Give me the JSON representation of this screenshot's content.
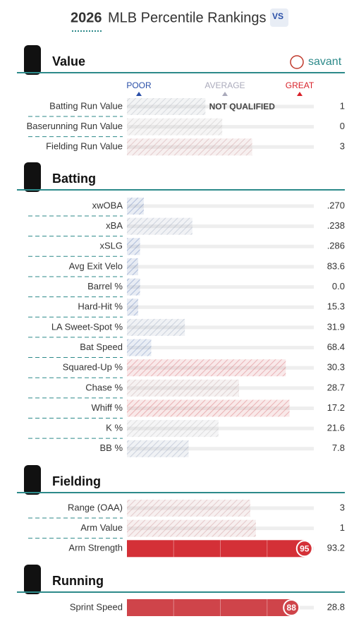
{
  "header": {
    "year": "2026",
    "title": "MLB Percentile Rankings",
    "brand": "savant"
  },
  "legend": {
    "poor": "POOR",
    "average": "AVERAGE",
    "great": "GREAT"
  },
  "colors": {
    "low": "#325aa8",
    "mid": "#b4b4b4",
    "high": "#d82129"
  },
  "sections": [
    {
      "title": "Value",
      "rows": [
        {
          "label": "Batting Run Value",
          "value": "1",
          "percentile": 42,
          "note": "NOT QUALIFIED",
          "hatched": true
        },
        {
          "label": "Baserunning Run Value",
          "value": "0",
          "percentile": 51,
          "hatched": true
        },
        {
          "label": "Fielding Run Value",
          "value": "3",
          "percentile": 67,
          "hatched": true
        }
      ]
    },
    {
      "title": "Batting",
      "rows": [
        {
          "label": "xwOBA",
          "value": ".270",
          "percentile": 9,
          "hatched": true
        },
        {
          "label": "xBA",
          "value": ".238",
          "percentile": 35,
          "hatched": true
        },
        {
          "label": "xSLG",
          "value": ".286",
          "percentile": 7,
          "hatched": true
        },
        {
          "label": "Avg Exit Velo",
          "value": "83.6",
          "percentile": 6,
          "hatched": true
        },
        {
          "label": "Barrel %",
          "value": "0.0",
          "percentile": 7,
          "hatched": true
        },
        {
          "label": "Hard-Hit %",
          "value": "15.3",
          "percentile": 6,
          "hatched": true
        },
        {
          "label": "LA Sweet-Spot %",
          "value": "31.9",
          "percentile": 31,
          "hatched": true
        },
        {
          "label": "Bat Speed",
          "value": "68.4",
          "percentile": 13,
          "hatched": true
        },
        {
          "label": "Squared-Up %",
          "value": "30.3",
          "percentile": 85,
          "hatched": true
        },
        {
          "label": "Chase %",
          "value": "28.7",
          "percentile": 60,
          "hatched": true
        },
        {
          "label": "Whiff %",
          "value": "17.2",
          "percentile": 87,
          "hatched": true
        },
        {
          "label": "K %",
          "value": "21.6",
          "percentile": 49,
          "hatched": true
        },
        {
          "label": "BB %",
          "value": "7.8",
          "percentile": 33,
          "hatched": true
        }
      ]
    },
    {
      "title": "Fielding",
      "rows": [
        {
          "label": "Range (OAA)",
          "value": "3",
          "percentile": 66,
          "hatched": true
        },
        {
          "label": "Arm Value",
          "value": "1",
          "percentile": 69,
          "hatched": true
        },
        {
          "label": "Arm Strength",
          "value": "93.2",
          "percentile": 95,
          "hatched": false
        }
      ]
    },
    {
      "title": "Running",
      "rows": [
        {
          "label": "Sprint Speed",
          "value": "28.8",
          "percentile": 88,
          "hatched": false
        }
      ]
    }
  ]
}
